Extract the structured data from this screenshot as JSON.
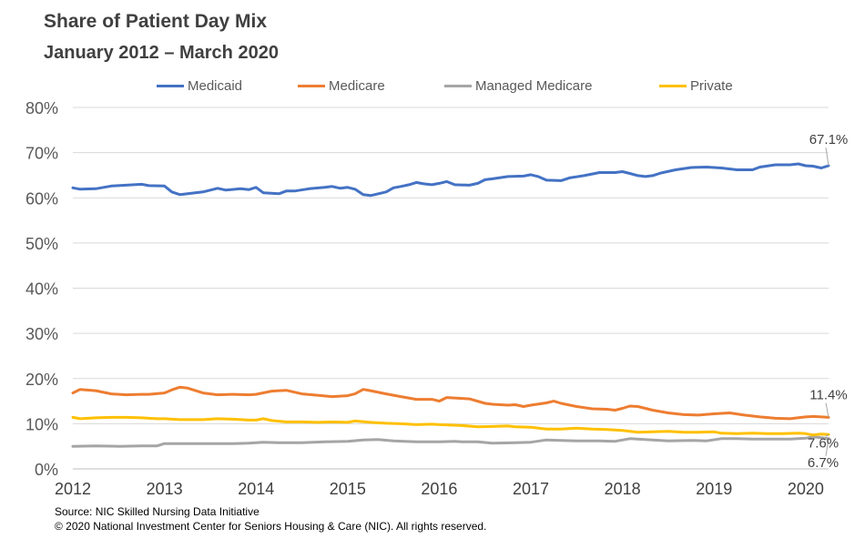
{
  "title": "Share of Patient Day Mix",
  "subtitle": "January  2012 – March 2020",
  "source": "Source: NIC Skilled Nursing Data Initiative",
  "copyright": "© 2020 National Investment Center for Seniors Housing & Care (NIC).  All rights reserved.",
  "legend": [
    {
      "label": "Medicaid",
      "color": "#4472C4"
    },
    {
      "label": "Medicare",
      "color": "#ED7D31"
    },
    {
      "label": "Managed Medicare",
      "color": "#A5A5A5"
    },
    {
      "label": "Private",
      "color": "#FFC000"
    }
  ],
  "chart_data": {
    "type": "line",
    "title": "Share of Patient Day Mix",
    "subtitle": "January 2012 – March 2020",
    "xlabel": "",
    "ylabel": "",
    "ylim": [
      0,
      80
    ],
    "y_ticks": [
      "0%",
      "10%",
      "20%",
      "30%",
      "40%",
      "50%",
      "60%",
      "70%",
      "80%"
    ],
    "y_tick_values": [
      0,
      10,
      20,
      30,
      40,
      50,
      60,
      70,
      80
    ],
    "x_ticks": [
      "2012",
      "2013",
      "2014",
      "2015",
      "2016",
      "2017",
      "2018",
      "2019",
      "2020"
    ],
    "x_tick_values": [
      2012,
      2013,
      2014,
      2015,
      2016,
      2017,
      2018,
      2019,
      2020
    ],
    "xlim": [
      2012,
      2020.25
    ],
    "grid": "horizontal",
    "legend_position": "top",
    "series": [
      {
        "name": "Medicaid",
        "color": "#4472C4",
        "end_label": "67.1%",
        "points": [
          [
            2012.0,
            62.2
          ],
          [
            2012.08,
            61.9
          ],
          [
            2012.25,
            62.0
          ],
          [
            2012.42,
            62.6
          ],
          [
            2012.58,
            62.8
          ],
          [
            2012.75,
            63.0
          ],
          [
            2012.83,
            62.7
          ],
          [
            2013.0,
            62.6
          ],
          [
            2013.08,
            61.3
          ],
          [
            2013.17,
            60.7
          ],
          [
            2013.42,
            61.3
          ],
          [
            2013.58,
            62.1
          ],
          [
            2013.67,
            61.7
          ],
          [
            2013.83,
            62.0
          ],
          [
            2013.92,
            61.8
          ],
          [
            2014.0,
            62.3
          ],
          [
            2014.08,
            61.1
          ],
          [
            2014.25,
            60.9
          ],
          [
            2014.33,
            61.5
          ],
          [
            2014.42,
            61.5
          ],
          [
            2014.58,
            62.0
          ],
          [
            2014.75,
            62.3
          ],
          [
            2014.83,
            62.5
          ],
          [
            2014.92,
            62.1
          ],
          [
            2015.0,
            62.3
          ],
          [
            2015.08,
            61.9
          ],
          [
            2015.17,
            60.7
          ],
          [
            2015.25,
            60.5
          ],
          [
            2015.42,
            61.3
          ],
          [
            2015.5,
            62.2
          ],
          [
            2015.58,
            62.5
          ],
          [
            2015.67,
            62.9
          ],
          [
            2015.75,
            63.4
          ],
          [
            2015.83,
            63.1
          ],
          [
            2015.92,
            62.9
          ],
          [
            2016.0,
            63.2
          ],
          [
            2016.08,
            63.6
          ],
          [
            2016.17,
            62.9
          ],
          [
            2016.33,
            62.8
          ],
          [
            2016.42,
            63.2
          ],
          [
            2016.5,
            64.0
          ],
          [
            2016.58,
            64.2
          ],
          [
            2016.75,
            64.7
          ],
          [
            2016.92,
            64.8
          ],
          [
            2017.0,
            65.1
          ],
          [
            2017.08,
            64.7
          ],
          [
            2017.17,
            63.9
          ],
          [
            2017.33,
            63.8
          ],
          [
            2017.42,
            64.4
          ],
          [
            2017.58,
            64.9
          ],
          [
            2017.75,
            65.6
          ],
          [
            2017.92,
            65.6
          ],
          [
            2018.0,
            65.8
          ],
          [
            2018.08,
            65.4
          ],
          [
            2018.17,
            64.9
          ],
          [
            2018.25,
            64.7
          ],
          [
            2018.33,
            64.9
          ],
          [
            2018.42,
            65.5
          ],
          [
            2018.58,
            66.2
          ],
          [
            2018.75,
            66.7
          ],
          [
            2018.92,
            66.8
          ],
          [
            2019.08,
            66.6
          ],
          [
            2019.25,
            66.2
          ],
          [
            2019.42,
            66.2
          ],
          [
            2019.5,
            66.8
          ],
          [
            2019.67,
            67.3
          ],
          [
            2019.83,
            67.3
          ],
          [
            2019.92,
            67.5
          ],
          [
            2020.0,
            67.1
          ],
          [
            2020.08,
            67.0
          ],
          [
            2020.17,
            66.6
          ],
          [
            2020.25,
            67.1
          ]
        ]
      },
      {
        "name": "Medicare",
        "color": "#ED7D31",
        "end_label": "11.4%",
        "points": [
          [
            2012.0,
            16.8
          ],
          [
            2012.08,
            17.6
          ],
          [
            2012.25,
            17.3
          ],
          [
            2012.42,
            16.6
          ],
          [
            2012.58,
            16.4
          ],
          [
            2012.75,
            16.5
          ],
          [
            2012.83,
            16.5
          ],
          [
            2013.0,
            16.8
          ],
          [
            2013.08,
            17.5
          ],
          [
            2013.17,
            18.1
          ],
          [
            2013.25,
            17.9
          ],
          [
            2013.42,
            16.8
          ],
          [
            2013.58,
            16.4
          ],
          [
            2013.75,
            16.5
          ],
          [
            2013.92,
            16.4
          ],
          [
            2014.0,
            16.5
          ],
          [
            2014.17,
            17.2
          ],
          [
            2014.25,
            17.3
          ],
          [
            2014.33,
            17.4
          ],
          [
            2014.5,
            16.6
          ],
          [
            2014.67,
            16.3
          ],
          [
            2014.83,
            16.0
          ],
          [
            2015.0,
            16.2
          ],
          [
            2015.08,
            16.6
          ],
          [
            2015.17,
            17.6
          ],
          [
            2015.25,
            17.3
          ],
          [
            2015.42,
            16.6
          ],
          [
            2015.58,
            16.0
          ],
          [
            2015.75,
            15.4
          ],
          [
            2015.92,
            15.4
          ],
          [
            2016.0,
            15.0
          ],
          [
            2016.08,
            15.8
          ],
          [
            2016.25,
            15.6
          ],
          [
            2016.33,
            15.5
          ],
          [
            2016.5,
            14.5
          ],
          [
            2016.58,
            14.3
          ],
          [
            2016.75,
            14.1
          ],
          [
            2016.83,
            14.2
          ],
          [
            2016.92,
            13.8
          ],
          [
            2017.0,
            14.1
          ],
          [
            2017.17,
            14.6
          ],
          [
            2017.25,
            15.0
          ],
          [
            2017.33,
            14.5
          ],
          [
            2017.5,
            13.8
          ],
          [
            2017.67,
            13.3
          ],
          [
            2017.83,
            13.2
          ],
          [
            2017.92,
            13.0
          ],
          [
            2018.0,
            13.4
          ],
          [
            2018.08,
            13.9
          ],
          [
            2018.17,
            13.8
          ],
          [
            2018.33,
            13.0
          ],
          [
            2018.5,
            12.4
          ],
          [
            2018.67,
            12.0
          ],
          [
            2018.83,
            11.9
          ],
          [
            2019.0,
            12.2
          ],
          [
            2019.17,
            12.4
          ],
          [
            2019.33,
            11.9
          ],
          [
            2019.5,
            11.5
          ],
          [
            2019.67,
            11.2
          ],
          [
            2019.83,
            11.1
          ],
          [
            2020.0,
            11.5
          ],
          [
            2020.08,
            11.6
          ],
          [
            2020.17,
            11.5
          ],
          [
            2020.25,
            11.4
          ]
        ]
      },
      {
        "name": "Managed Medicare",
        "color": "#A5A5A5",
        "end_label": "6.7%",
        "points": [
          [
            2012.0,
            5.0
          ],
          [
            2012.25,
            5.1
          ],
          [
            2012.5,
            5.0
          ],
          [
            2012.75,
            5.1
          ],
          [
            2012.92,
            5.1
          ],
          [
            2013.0,
            5.6
          ],
          [
            2013.25,
            5.6
          ],
          [
            2013.5,
            5.6
          ],
          [
            2013.75,
            5.6
          ],
          [
            2013.92,
            5.7
          ],
          [
            2014.08,
            5.9
          ],
          [
            2014.25,
            5.8
          ],
          [
            2014.5,
            5.8
          ],
          [
            2014.75,
            6.0
          ],
          [
            2015.0,
            6.1
          ],
          [
            2015.17,
            6.4
          ],
          [
            2015.33,
            6.5
          ],
          [
            2015.5,
            6.2
          ],
          [
            2015.75,
            6.0
          ],
          [
            2016.0,
            6.0
          ],
          [
            2016.17,
            6.1
          ],
          [
            2016.25,
            6.0
          ],
          [
            2016.42,
            6.0
          ],
          [
            2016.58,
            5.7
          ],
          [
            2016.83,
            5.8
          ],
          [
            2017.0,
            5.9
          ],
          [
            2017.17,
            6.4
          ],
          [
            2017.33,
            6.3
          ],
          [
            2017.5,
            6.2
          ],
          [
            2017.75,
            6.2
          ],
          [
            2017.92,
            6.1
          ],
          [
            2018.08,
            6.7
          ],
          [
            2018.25,
            6.5
          ],
          [
            2018.5,
            6.2
          ],
          [
            2018.75,
            6.3
          ],
          [
            2018.92,
            6.2
          ],
          [
            2019.08,
            6.7
          ],
          [
            2019.25,
            6.7
          ],
          [
            2019.42,
            6.6
          ],
          [
            2019.67,
            6.6
          ],
          [
            2019.83,
            6.6
          ],
          [
            2020.0,
            6.8
          ],
          [
            2020.08,
            7.1
          ],
          [
            2020.17,
            6.9
          ],
          [
            2020.25,
            6.7
          ]
        ]
      },
      {
        "name": "Private",
        "color": "#FFC000",
        "end_label": "7.6%",
        "points": [
          [
            2012.0,
            11.4
          ],
          [
            2012.08,
            11.1
          ],
          [
            2012.25,
            11.3
          ],
          [
            2012.42,
            11.4
          ],
          [
            2012.58,
            11.4
          ],
          [
            2012.75,
            11.3
          ],
          [
            2012.92,
            11.1
          ],
          [
            2013.0,
            11.1
          ],
          [
            2013.17,
            10.9
          ],
          [
            2013.42,
            10.9
          ],
          [
            2013.58,
            11.1
          ],
          [
            2013.75,
            11.0
          ],
          [
            2013.92,
            10.8
          ],
          [
            2014.0,
            10.8
          ],
          [
            2014.08,
            11.1
          ],
          [
            2014.17,
            10.7
          ],
          [
            2014.33,
            10.4
          ],
          [
            2014.5,
            10.4
          ],
          [
            2014.67,
            10.3
          ],
          [
            2014.83,
            10.4
          ],
          [
            2015.0,
            10.3
          ],
          [
            2015.08,
            10.6
          ],
          [
            2015.25,
            10.3
          ],
          [
            2015.42,
            10.1
          ],
          [
            2015.58,
            10.0
          ],
          [
            2015.75,
            9.8
          ],
          [
            2015.92,
            9.9
          ],
          [
            2016.0,
            9.8
          ],
          [
            2016.25,
            9.6
          ],
          [
            2016.42,
            9.3
          ],
          [
            2016.58,
            9.4
          ],
          [
            2016.75,
            9.5
          ],
          [
            2016.83,
            9.3
          ],
          [
            2017.0,
            9.2
          ],
          [
            2017.17,
            8.8
          ],
          [
            2017.33,
            8.8
          ],
          [
            2017.5,
            9.0
          ],
          [
            2017.67,
            8.8
          ],
          [
            2017.83,
            8.7
          ],
          [
            2018.0,
            8.5
          ],
          [
            2018.17,
            8.1
          ],
          [
            2018.33,
            8.2
          ],
          [
            2018.5,
            8.3
          ],
          [
            2018.67,
            8.1
          ],
          [
            2018.83,
            8.1
          ],
          [
            2019.0,
            8.2
          ],
          [
            2019.08,
            7.9
          ],
          [
            2019.25,
            7.8
          ],
          [
            2019.42,
            7.9
          ],
          [
            2019.58,
            7.8
          ],
          [
            2019.75,
            7.8
          ],
          [
            2019.92,
            7.9
          ],
          [
            2020.0,
            7.8
          ],
          [
            2020.08,
            7.5
          ],
          [
            2020.17,
            7.7
          ],
          [
            2020.25,
            7.6
          ]
        ]
      }
    ]
  }
}
